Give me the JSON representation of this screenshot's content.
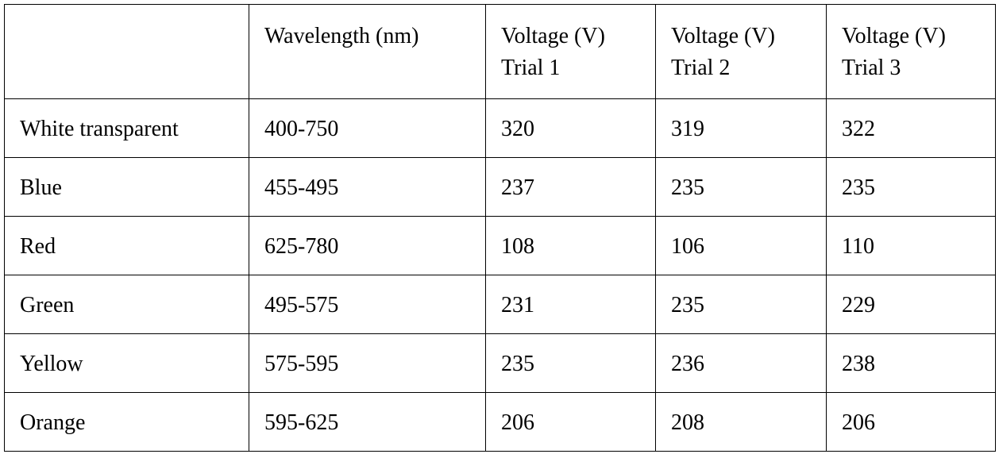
{
  "table": {
    "header": [
      [
        "Wavelength (nm)"
      ],
      [
        "Voltage (V)",
        "Trial 1"
      ],
      [
        "Voltage (V)",
        "Trial 2"
      ],
      [
        "Voltage (V)",
        "Trial 3"
      ]
    ],
    "rows": [
      [
        "White transparent",
        "400-750",
        320,
        319,
        322
      ],
      [
        "Blue",
        "455-495",
        237,
        235,
        235
      ],
      [
        "Red",
        "625-780",
        108,
        106,
        110
      ],
      [
        "Green",
        "495-575",
        231,
        235,
        229
      ],
      [
        "Yellow",
        "575-595",
        235,
        236,
        238
      ],
      [
        "Orange",
        "595-625",
        206,
        208,
        206
      ]
    ]
  }
}
